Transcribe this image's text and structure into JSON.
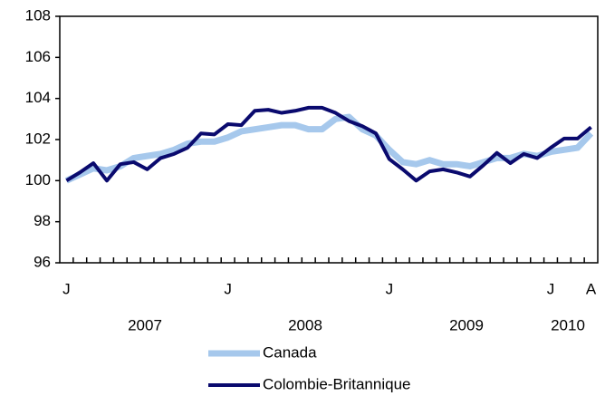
{
  "chart_data": {
    "type": "line",
    "categories": [
      "J",
      null,
      null,
      null,
      null,
      null,
      null,
      null,
      null,
      null,
      null,
      null,
      "J",
      null,
      null,
      null,
      null,
      null,
      null,
      null,
      null,
      null,
      null,
      null,
      "J",
      null,
      null,
      null,
      null,
      null,
      null,
      null,
      null,
      null,
      null,
      null,
      "J",
      null,
      null,
      "A"
    ],
    "annotations": [
      "2007",
      "2008",
      "2009",
      "2010"
    ],
    "ylim": [
      96,
      108
    ],
    "yticks": [
      96,
      98,
      100,
      102,
      104,
      106,
      108
    ],
    "series": [
      {
        "name": "Canada",
        "color": "#a6c8ec",
        "values": [
          100.0,
          100.3,
          100.6,
          100.5,
          100.7,
          101.1,
          101.2,
          101.3,
          101.5,
          101.8,
          101.9,
          101.9,
          102.1,
          102.4,
          102.5,
          102.6,
          102.7,
          102.7,
          102.5,
          102.5,
          103.0,
          103.1,
          102.5,
          102.2,
          101.5,
          100.9,
          100.8,
          101.0,
          100.8,
          100.8,
          100.7,
          100.9,
          101.1,
          101.1,
          101.3,
          101.2,
          101.4,
          101.5,
          101.6,
          102.3
        ]
      },
      {
        "name": "Colombie-Britannique",
        "color": "#0a0a6e",
        "values": [
          100.0,
          100.4,
          100.85,
          100.0,
          100.8,
          100.9,
          100.55,
          101.1,
          101.3,
          101.6,
          102.3,
          102.25,
          102.75,
          102.7,
          103.4,
          103.45,
          103.3,
          103.4,
          103.55,
          103.55,
          103.3,
          102.9,
          102.65,
          102.3,
          101.05,
          100.55,
          100.0,
          100.45,
          100.55,
          100.4,
          100.2,
          100.75,
          101.35,
          100.85,
          101.3,
          101.1,
          101.6,
          102.05,
          102.05,
          102.6
        ]
      }
    ]
  }
}
